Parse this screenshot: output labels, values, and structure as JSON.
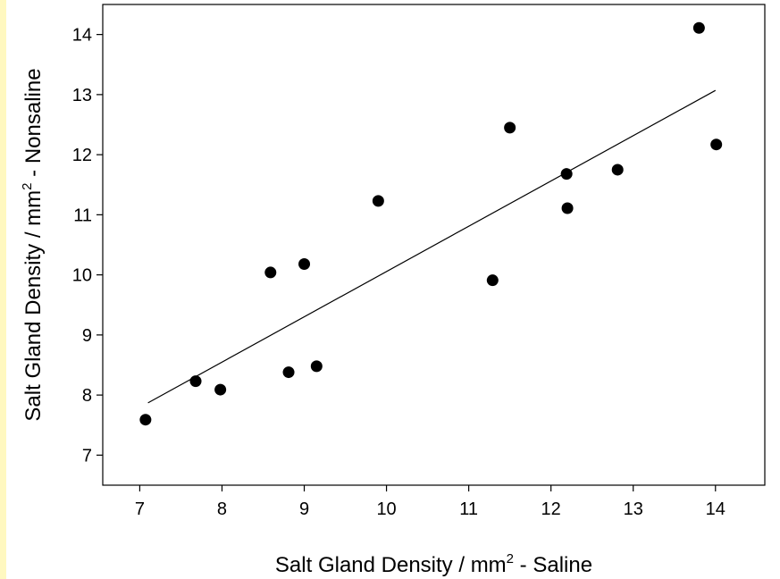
{
  "colors": {
    "background": "#ffffff",
    "left_stripe": "#fff8c0",
    "marker": "#000000"
  },
  "chart_data": {
    "type": "scatter",
    "title": "",
    "xlabel": {
      "prefix": "Salt Gland Density / mm",
      "superscript": "2",
      "suffix": " - Saline"
    },
    "ylabel": {
      "prefix": "Salt Gland Density / mm",
      "superscript": "2",
      "suffix": " - Nonsaline"
    },
    "xlim": [
      6.55,
      14.6
    ],
    "ylim": [
      6.5,
      14.5
    ],
    "xticks": [
      7,
      8,
      9,
      10,
      11,
      12,
      13,
      14
    ],
    "yticks": [
      7,
      8,
      9,
      10,
      11,
      12,
      13,
      14
    ],
    "grid": false,
    "points": [
      {
        "x": 7.07,
        "y": 7.59
      },
      {
        "x": 7.68,
        "y": 8.23
      },
      {
        "x": 7.98,
        "y": 8.09
      },
      {
        "x": 8.59,
        "y": 10.04
      },
      {
        "x": 8.81,
        "y": 8.38
      },
      {
        "x": 9.0,
        "y": 10.18
      },
      {
        "x": 9.15,
        "y": 8.48
      },
      {
        "x": 9.9,
        "y": 11.23
      },
      {
        "x": 11.29,
        "y": 9.91
      },
      {
        "x": 11.5,
        "y": 12.45
      },
      {
        "x": 12.19,
        "y": 11.68
      },
      {
        "x": 12.2,
        "y": 11.11
      },
      {
        "x": 12.81,
        "y": 11.75
      },
      {
        "x": 13.8,
        "y": 14.11
      },
      {
        "x": 14.01,
        "y": 12.17
      }
    ],
    "regression_line": {
      "x": [
        7.1,
        14.0
      ],
      "y": [
        7.87,
        13.07
      ]
    }
  }
}
